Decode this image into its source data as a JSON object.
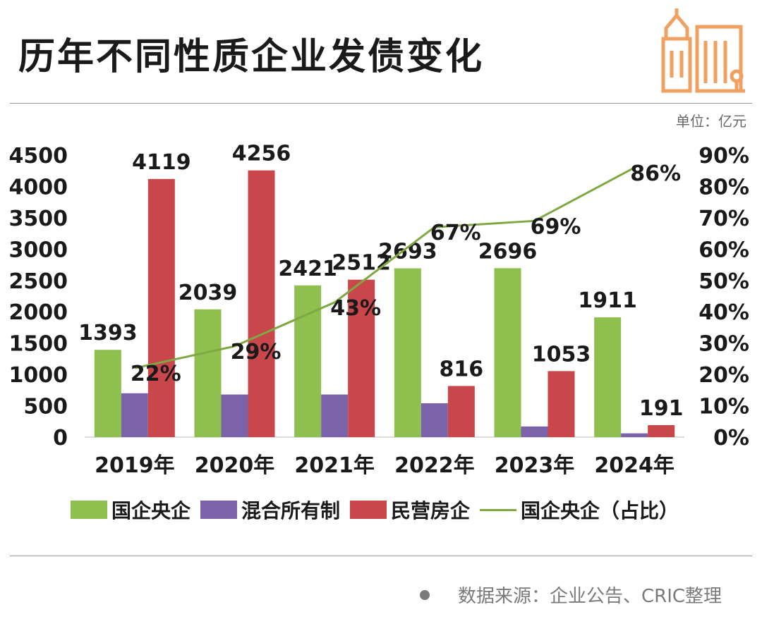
{
  "title": "历年不同性质企业发债变化",
  "unit": "单位：亿元",
  "source": "数据来源：企业公告、CRIC整理",
  "colors": {
    "soe": "#8fbf4e",
    "mixed": "#7a63a8",
    "private": "#c9464a",
    "ratio_line": "#7fa843",
    "building": "#f0a060"
  },
  "chart_data": {
    "type": "bar",
    "categories": [
      "2019年",
      "2020年",
      "2021年",
      "2022年",
      "2023年",
      "2024年"
    ],
    "series": [
      {
        "name": "国企央企",
        "values": [
          1393,
          2039,
          2421,
          2693,
          2696,
          1911
        ],
        "labels": [
          "1393",
          "2039",
          "2421",
          "2693",
          "2696",
          "1911"
        ]
      },
      {
        "name": "混合所有制",
        "values": [
          700,
          680,
          680,
          540,
          170,
          60
        ],
        "labels": []
      },
      {
        "name": "民营房企",
        "values": [
          4119,
          4256,
          2512,
          816,
          1053,
          191
        ],
        "labels": [
          "4119",
          "4256",
          "2512",
          "816",
          "1053",
          "191"
        ]
      }
    ],
    "line_series": {
      "name": "国企央企（占比）",
      "axis": "right",
      "values": [
        22,
        29,
        43,
        67,
        69,
        86
      ],
      "labels": [
        "22%",
        "29%",
        "43%",
        "67%",
        "69%",
        "86%"
      ]
    },
    "ylim": [
      0,
      4500
    ],
    "yticks": [
      "0",
      "500",
      "1000",
      "1500",
      "2000",
      "2500",
      "3000",
      "3500",
      "4000",
      "4500"
    ],
    "y2lim": [
      0,
      90
    ],
    "y2ticks": [
      "0%",
      "10%",
      "20%",
      "30%",
      "40%",
      "50%",
      "60%",
      "70%",
      "80%",
      "90%"
    ],
    "legend": "bottom"
  }
}
